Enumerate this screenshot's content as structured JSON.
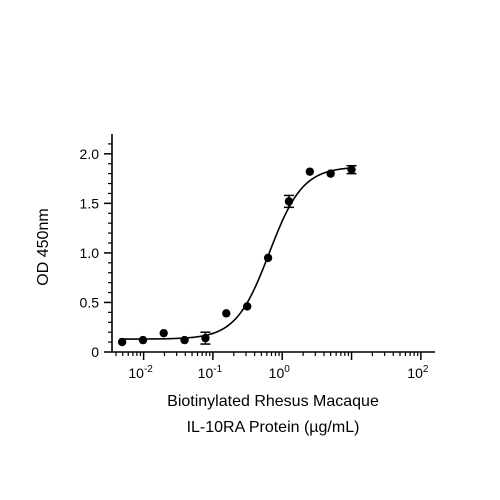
{
  "chart_data": {
    "type": "scatter",
    "title": "",
    "xlabel_lines": [
      "Biotinylated Rhesus Macaque",
      "IL-10RA Protein (µg/mL)"
    ],
    "ylabel": "OD 450nm",
    "x_scale": "log",
    "xlim": [
      0.0035,
      160
    ],
    "ylim": [
      0,
      2.2
    ],
    "x_ticks": [
      {
        "value": 0.01,
        "base": "10",
        "exp": "-2"
      },
      {
        "value": 0.1,
        "base": "10",
        "exp": "-1"
      },
      {
        "value": 1,
        "base": "10",
        "exp": "0"
      },
      {
        "value": 100,
        "base": "10",
        "exp": "2"
      }
    ],
    "y_ticks": [
      {
        "value": 0,
        "label": "0"
      },
      {
        "value": 0.5,
        "label": "0.5"
      },
      {
        "value": 1.0,
        "label": "1.0"
      },
      {
        "value": 1.5,
        "label": "1.5"
      },
      {
        "value": 2.0,
        "label": "2.0"
      }
    ],
    "grid": false,
    "legend": "none",
    "series": [
      {
        "points": [
          {
            "x": 0.0049,
            "y": 0.1,
            "err": 0
          },
          {
            "x": 0.0098,
            "y": 0.12,
            "err": 0
          },
          {
            "x": 0.0195,
            "y": 0.19,
            "err": 0
          },
          {
            "x": 0.039,
            "y": 0.12,
            "err": 0
          },
          {
            "x": 0.078,
            "y": 0.14,
            "err": 0.06
          },
          {
            "x": 0.156,
            "y": 0.39,
            "err": 0
          },
          {
            "x": 0.3125,
            "y": 0.46,
            "err": 0
          },
          {
            "x": 0.625,
            "y": 0.95,
            "err": 0
          },
          {
            "x": 1.25,
            "y": 1.52,
            "err": 0.06
          },
          {
            "x": 2.5,
            "y": 1.82,
            "err": 0
          },
          {
            "x": 5,
            "y": 1.8,
            "err": 0
          },
          {
            "x": 10,
            "y": 1.84,
            "err": 0.04
          }
        ]
      }
    ],
    "fit_curve": {
      "model": "4PL",
      "bottom": 0.13,
      "top": 1.87,
      "ec50": 0.65,
      "hill": 1.8
    }
  }
}
